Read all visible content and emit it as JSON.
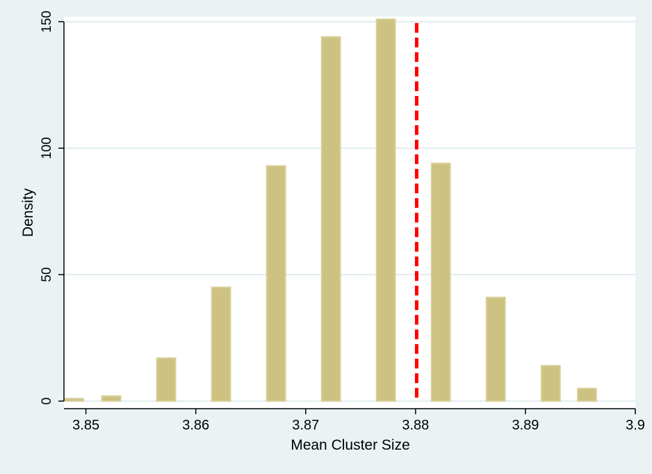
{
  "chart_data": {
    "type": "bar",
    "xlabel": "Mean Cluster Size",
    "ylabel": "Density",
    "xlim": [
      3.848,
      3.9
    ],
    "ylim": [
      -3,
      152
    ],
    "xticks": [
      3.85,
      3.86,
      3.87,
      3.88,
      3.89,
      3.9
    ],
    "xtick_labels": [
      "3.85",
      "3.86",
      "3.87",
      "3.88",
      "3.89",
      "3.9"
    ],
    "yticks": [
      0,
      50,
      100,
      150
    ],
    "ytick_labels": [
      "0",
      "50",
      "100",
      "150"
    ],
    "grid": true,
    "bar_width": 0.0017,
    "bars": [
      {
        "x": 3.8489,
        "value": 1
      },
      {
        "x": 3.8523,
        "value": 2
      },
      {
        "x": 3.8573,
        "value": 17
      },
      {
        "x": 3.8623,
        "value": 45
      },
      {
        "x": 3.8673,
        "value": 93
      },
      {
        "x": 3.8723,
        "value": 144
      },
      {
        "x": 3.8773,
        "value": 151
      },
      {
        "x": 3.8823,
        "value": 94
      },
      {
        "x": 3.8873,
        "value": 41
      },
      {
        "x": 3.8923,
        "value": 14
      },
      {
        "x": 3.8956,
        "value": 5
      }
    ],
    "reference_line": {
      "x": 3.8801,
      "color": "#ff0000",
      "style": "dashed"
    },
    "colors": {
      "bar_fill": "#cdc281",
      "bar_edge": "#d8d09a",
      "plot_background": "#ffffff",
      "outer_background": "#eaf2f3",
      "gridline": "#e1ecee"
    }
  }
}
